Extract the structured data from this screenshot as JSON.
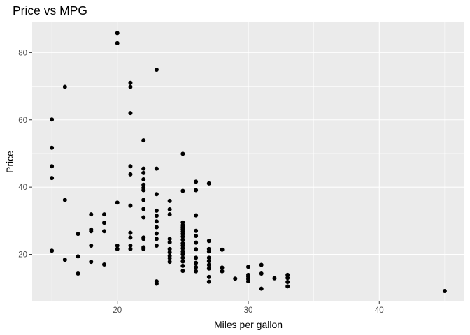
{
  "chart_data": {
    "type": "scatter",
    "title": "Price vs MPG",
    "xlabel": "Miles per gallon",
    "ylabel": "Price",
    "xlim": [
      13.5,
      46.5
    ],
    "ylim": [
      6.0,
      89.0
    ],
    "x_ticks": [
      20,
      30,
      40
    ],
    "y_ticks": [
      20,
      40,
      60,
      80
    ],
    "x_tick_labels": [
      "20",
      "30",
      "40"
    ],
    "y_tick_labels": [
      "20",
      "40",
      "60",
      "80"
    ],
    "grid": true,
    "background": "#ebebeb",
    "grid_color": "#ffffff",
    "point_color": "#000000",
    "points": [
      [
        15,
        60.1
      ],
      [
        15,
        51.7
      ],
      [
        15,
        46.2
      ],
      [
        15,
        42.7
      ],
      [
        15,
        21.1
      ],
      [
        16,
        69.8
      ],
      [
        16,
        36.2
      ],
      [
        16,
        18.4
      ],
      [
        17,
        26.1
      ],
      [
        17,
        19.4
      ],
      [
        17,
        14.3
      ],
      [
        18,
        31.9
      ],
      [
        18,
        27.4
      ],
      [
        18,
        26.9
      ],
      [
        18,
        22.6
      ],
      [
        18,
        17.8
      ],
      [
        19,
        31.9
      ],
      [
        19,
        29.4
      ],
      [
        19,
        26.9
      ],
      [
        19,
        17.0
      ],
      [
        20,
        85.8
      ],
      [
        20,
        82.8
      ],
      [
        20,
        35.4
      ],
      [
        20,
        22.6
      ],
      [
        20,
        21.6
      ],
      [
        21,
        71.0
      ],
      [
        21,
        69.8
      ],
      [
        21,
        62.0
      ],
      [
        21,
        46.2
      ],
      [
        21,
        43.8
      ],
      [
        21,
        34.5
      ],
      [
        21,
        26.4
      ],
      [
        21,
        25.0
      ],
      [
        21,
        22.6
      ],
      [
        21,
        21.6
      ],
      [
        22,
        53.9
      ],
      [
        22,
        45.5
      ],
      [
        22,
        44.2
      ],
      [
        22,
        42.3
      ],
      [
        22,
        40.7
      ],
      [
        22,
        39.8
      ],
      [
        22,
        39.1
      ],
      [
        22,
        36.2
      ],
      [
        22,
        33.5
      ],
      [
        22,
        31.0
      ],
      [
        22,
        25.0
      ],
      [
        22,
        24.6
      ],
      [
        22,
        22.1
      ],
      [
        22,
        21.6
      ],
      [
        23,
        74.9
      ],
      [
        23,
        45.5
      ],
      [
        23,
        37.9
      ],
      [
        23,
        33.0
      ],
      [
        23,
        31.5
      ],
      [
        23,
        29.8
      ],
      [
        23,
        28.1
      ],
      [
        23,
        26.2
      ],
      [
        23,
        24.6
      ],
      [
        23,
        22.6
      ],
      [
        23,
        12.0
      ],
      [
        23,
        11.3
      ],
      [
        24,
        35.9
      ],
      [
        24,
        33.4
      ],
      [
        24,
        31.9
      ],
      [
        24,
        24.6
      ],
      [
        24,
        23.6
      ],
      [
        24,
        21.6
      ],
      [
        24,
        20.6
      ],
      [
        24,
        19.6
      ],
      [
        24,
        18.9
      ],
      [
        24,
        17.8
      ],
      [
        25,
        49.9
      ],
      [
        25,
        38.9
      ],
      [
        25,
        29.5
      ],
      [
        25,
        28.7
      ],
      [
        25,
        28.1
      ],
      [
        25,
        27.5
      ],
      [
        25,
        26.8
      ],
      [
        25,
        26.1
      ],
      [
        25,
        25.3
      ],
      [
        25,
        24.4
      ],
      [
        25,
        23.3
      ],
      [
        25,
        22.6
      ],
      [
        25,
        21.8
      ],
      [
        25,
        20.9
      ],
      [
        25,
        20.0
      ],
      [
        25,
        19.0
      ],
      [
        25,
        17.9
      ],
      [
        25,
        16.6
      ],
      [
        25,
        15.1
      ],
      [
        26,
        41.6
      ],
      [
        26,
        39.1
      ],
      [
        26,
        31.6
      ],
      [
        26,
        27.0
      ],
      [
        26,
        25.5
      ],
      [
        26,
        23.5
      ],
      [
        26,
        21.5
      ],
      [
        26,
        19.0
      ],
      [
        26,
        17.5
      ],
      [
        26,
        16.2
      ],
      [
        26,
        15.0
      ],
      [
        27,
        41.1
      ],
      [
        27,
        24.0
      ],
      [
        27,
        21.6
      ],
      [
        27,
        20.9
      ],
      [
        27,
        19.0
      ],
      [
        27,
        18.0
      ],
      [
        27,
        16.9
      ],
      [
        27,
        15.8
      ],
      [
        27,
        13.3
      ],
      [
        27,
        11.9
      ],
      [
        28,
        21.4
      ],
      [
        28,
        16.1
      ],
      [
        28,
        15.0
      ],
      [
        29,
        12.8
      ],
      [
        30,
        16.3
      ],
      [
        30,
        13.9
      ],
      [
        30,
        13.4
      ],
      [
        30,
        12.7
      ],
      [
        30,
        12.0
      ],
      [
        31,
        16.9
      ],
      [
        31,
        14.3
      ],
      [
        31,
        9.8
      ],
      [
        32,
        12.9
      ],
      [
        33,
        13.9
      ],
      [
        33,
        13.0
      ],
      [
        33,
        11.8
      ],
      [
        33,
        10.5
      ],
      [
        45,
        9.1
      ]
    ]
  }
}
